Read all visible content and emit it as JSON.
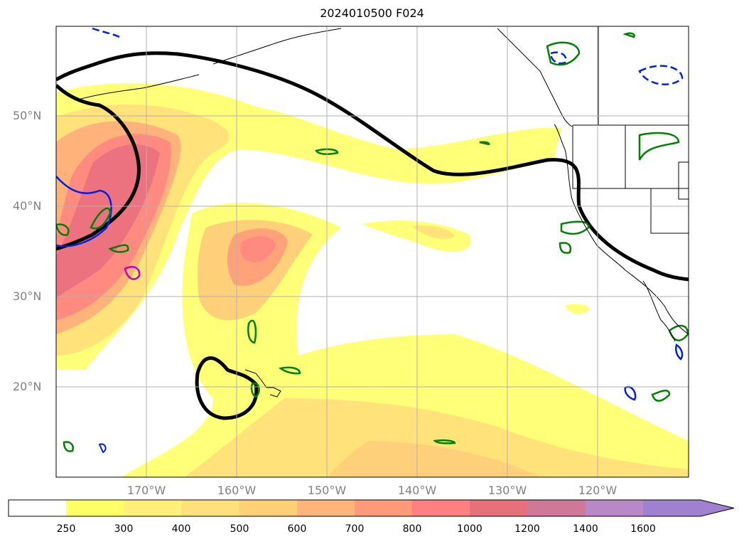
{
  "title": "2024010500 F024",
  "map": {
    "projection": "plate-carree",
    "lon_range": [
      -180,
      -110
    ],
    "lat_range": [
      10,
      60
    ],
    "grid": true,
    "lat_labels": [
      "50°N",
      "40°N",
      "30°N",
      "20°N"
    ],
    "lon_labels": [
      "170°W",
      "160°W",
      "150°W",
      "140°W",
      "130°W",
      "120°W"
    ],
    "field": "filled contours (values 250 to 1600+)",
    "overlays": [
      "black contour",
      "green contours",
      "blue dashed/solid contours",
      "magenta contour",
      "coastlines and state borders"
    ]
  },
  "colorbar": {
    "ticks": [
      "250",
      "300",
      "400",
      "500",
      "600",
      "700",
      "800",
      "1000",
      "1200",
      "1400",
      "1600"
    ],
    "colors": [
      "#ffffff",
      "#ffff66",
      "#fff07a",
      "#ffe07a",
      "#ffd078",
      "#ffb47a",
      "#ff9a78",
      "#ff8080",
      "#e8707a",
      "#d07898",
      "#b888c8",
      "#a080d0"
    ],
    "extend": "max"
  }
}
